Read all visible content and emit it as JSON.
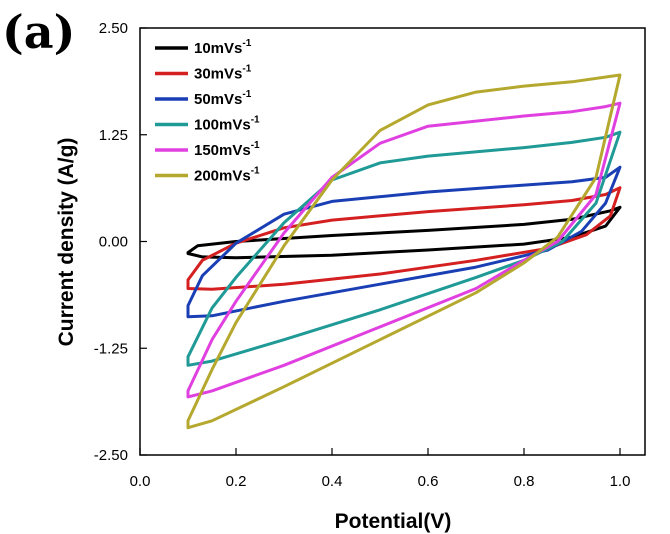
{
  "panel_label": "(a)",
  "chart_data": {
    "type": "line",
    "title": "",
    "xlabel": "Potential(V)",
    "ylabel": "Current density (A/g)",
    "xlim": [
      0.0,
      1.05
    ],
    "ylim": [
      -2.5,
      2.5
    ],
    "x_ticks": [
      "0.0",
      "0.2",
      "0.4",
      "0.6",
      "0.8",
      "1.0"
    ],
    "y_ticks": [
      "2.50",
      "1.25",
      "0.00",
      "-1.25",
      "-2.50"
    ],
    "grid": false,
    "legend_position": "top-left",
    "x_range": [
      0.1,
      1.0
    ],
    "series": [
      {
        "name": "10mVs",
        "unit_superscript": "-1",
        "color": "#000000",
        "upper": [
          [
            0.1,
            -0.13
          ],
          [
            0.12,
            -0.05
          ],
          [
            0.2,
            0.0
          ],
          [
            0.4,
            0.07
          ],
          [
            0.6,
            0.13
          ],
          [
            0.8,
            0.2
          ],
          [
            0.9,
            0.26
          ],
          [
            0.98,
            0.36
          ],
          [
            1.0,
            0.4
          ]
        ],
        "lower": [
          [
            0.1,
            -0.14
          ],
          [
            0.13,
            -0.18
          ],
          [
            0.2,
            -0.19
          ],
          [
            0.4,
            -0.16
          ],
          [
            0.6,
            -0.1
          ],
          [
            0.8,
            -0.03
          ],
          [
            0.9,
            0.05
          ],
          [
            0.97,
            0.18
          ],
          [
            1.0,
            0.4
          ]
        ]
      },
      {
        "name": "30mVs",
        "unit_superscript": "-1",
        "color": "#d42020",
        "upper": [
          [
            0.1,
            -0.45
          ],
          [
            0.13,
            -0.22
          ],
          [
            0.2,
            -0.02
          ],
          [
            0.3,
            0.16
          ],
          [
            0.4,
            0.25
          ],
          [
            0.6,
            0.35
          ],
          [
            0.8,
            0.43
          ],
          [
            0.9,
            0.48
          ],
          [
            0.97,
            0.55
          ],
          [
            1.0,
            0.63
          ]
        ],
        "lower": [
          [
            0.1,
            -0.55
          ],
          [
            0.15,
            -0.56
          ],
          [
            0.3,
            -0.5
          ],
          [
            0.5,
            -0.38
          ],
          [
            0.7,
            -0.22
          ],
          [
            0.85,
            -0.08
          ],
          [
            0.93,
            0.08
          ],
          [
            0.98,
            0.3
          ],
          [
            1.0,
            0.63
          ]
        ]
      },
      {
        "name": "50mVs",
        "unit_superscript": "-1",
        "color": "#1a3fb5",
        "upper": [
          [
            0.1,
            -0.75
          ],
          [
            0.13,
            -0.4
          ],
          [
            0.2,
            -0.02
          ],
          [
            0.3,
            0.32
          ],
          [
            0.4,
            0.47
          ],
          [
            0.6,
            0.58
          ],
          [
            0.8,
            0.66
          ],
          [
            0.9,
            0.7
          ],
          [
            0.97,
            0.75
          ],
          [
            1.0,
            0.87
          ]
        ],
        "lower": [
          [
            0.1,
            -0.88
          ],
          [
            0.15,
            -0.87
          ],
          [
            0.3,
            -0.7
          ],
          [
            0.5,
            -0.5
          ],
          [
            0.7,
            -0.3
          ],
          [
            0.85,
            -0.1
          ],
          [
            0.92,
            0.12
          ],
          [
            0.97,
            0.45
          ],
          [
            1.0,
            0.87
          ]
        ]
      },
      {
        "name": "100mVs",
        "unit_superscript": "-1",
        "color": "#209a96",
        "upper": [
          [
            0.1,
            -1.35
          ],
          [
            0.15,
            -0.78
          ],
          [
            0.2,
            -0.42
          ],
          [
            0.3,
            0.22
          ],
          [
            0.4,
            0.72
          ],
          [
            0.5,
            0.92
          ],
          [
            0.6,
            1.0
          ],
          [
            0.8,
            1.1
          ],
          [
            0.9,
            1.16
          ],
          [
            0.97,
            1.22
          ],
          [
            1.0,
            1.28
          ]
        ],
        "lower": [
          [
            0.1,
            -1.45
          ],
          [
            0.15,
            -1.4
          ],
          [
            0.3,
            -1.15
          ],
          [
            0.5,
            -0.8
          ],
          [
            0.7,
            -0.42
          ],
          [
            0.8,
            -0.22
          ],
          [
            0.88,
            0.0
          ],
          [
            0.95,
            0.45
          ],
          [
            1.0,
            1.28
          ]
        ]
      },
      {
        "name": "150mVs",
        "unit_superscript": "-1",
        "color": "#e040e0",
        "upper": [
          [
            0.1,
            -1.75
          ],
          [
            0.15,
            -1.15
          ],
          [
            0.2,
            -0.7
          ],
          [
            0.3,
            0.1
          ],
          [
            0.4,
            0.75
          ],
          [
            0.5,
            1.15
          ],
          [
            0.6,
            1.35
          ],
          [
            0.8,
            1.47
          ],
          [
            0.9,
            1.52
          ],
          [
            0.97,
            1.58
          ],
          [
            1.0,
            1.62
          ]
        ],
        "lower": [
          [
            0.1,
            -1.82
          ],
          [
            0.15,
            -1.75
          ],
          [
            0.3,
            -1.45
          ],
          [
            0.5,
            -1.0
          ],
          [
            0.7,
            -0.55
          ],
          [
            0.8,
            -0.22
          ],
          [
            0.87,
            0.0
          ],
          [
            0.95,
            0.55
          ],
          [
            1.0,
            1.62
          ]
        ]
      },
      {
        "name": "200mVs",
        "unit_superscript": "-1",
        "color": "#b5a82e",
        "upper": [
          [
            0.1,
            -2.1
          ],
          [
            0.15,
            -1.5
          ],
          [
            0.2,
            -0.95
          ],
          [
            0.3,
            -0.05
          ],
          [
            0.4,
            0.72
          ],
          [
            0.5,
            1.3
          ],
          [
            0.6,
            1.6
          ],
          [
            0.7,
            1.75
          ],
          [
            0.8,
            1.82
          ],
          [
            0.9,
            1.87
          ],
          [
            1.0,
            1.95
          ]
        ],
        "lower": [
          [
            0.1,
            -2.18
          ],
          [
            0.15,
            -2.1
          ],
          [
            0.3,
            -1.7
          ],
          [
            0.5,
            -1.15
          ],
          [
            0.7,
            -0.6
          ],
          [
            0.8,
            -0.25
          ],
          [
            0.87,
            0.05
          ],
          [
            0.95,
            0.75
          ],
          [
            1.0,
            1.95
          ]
        ]
      }
    ]
  }
}
